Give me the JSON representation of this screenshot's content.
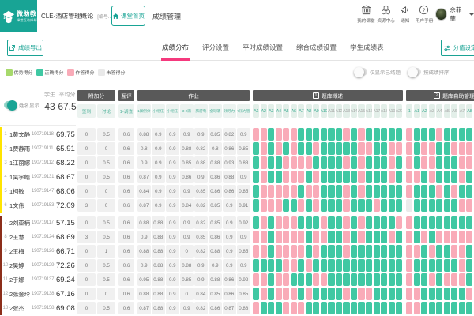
{
  "brand": {
    "name": "微助教",
    "tagline": "课堂互动好帮手",
    "color": "#18a495"
  },
  "topbar": {
    "course_title": "CLE-酒店管理概论",
    "course_code": "[编号...",
    "home_button": "课堂首页",
    "page_label": "成绩管理",
    "nav_items": [
      {
        "label": "我的课堂",
        "icon": "building-icon"
      },
      {
        "label": "资源中心",
        "icon": "resource-icon"
      },
      {
        "label": "通知",
        "icon": "megaphone-icon"
      },
      {
        "label": "用户手册",
        "icon": "question-icon"
      }
    ],
    "user": {
      "name": "余菲菲"
    }
  },
  "toolbar": {
    "export_button": "成绩导出",
    "tabs": [
      {
        "label": "成绩分布",
        "active": true
      },
      {
        "label": "评分设置",
        "active": false
      },
      {
        "label": "平时成绩设置",
        "active": false
      },
      {
        "label": "综合成绩设置",
        "active": false
      },
      {
        "label": "学生成绩表",
        "active": false
      }
    ],
    "score_button": "分值设定",
    "active_tab_color": "#f5397d"
  },
  "legend": {
    "items": [
      {
        "label": "优秀得分",
        "color": "#a7d96c"
      },
      {
        "label": "正确得分",
        "color": "#40c8a3"
      },
      {
        "label": "作答得分",
        "color": "#f9abb8"
      },
      {
        "label": "未答得分",
        "color": "#e9e9e9"
      }
    ]
  },
  "switches": [
    {
      "label": "仅显示已结题",
      "on": false
    },
    {
      "label": "按成绩排序",
      "on": false
    }
  ],
  "panel": {
    "name_toggle": {
      "label": "姓名显示",
      "on": true
    },
    "students_label": "学生",
    "students_value": "43",
    "average_label": "平均分",
    "average_value": "67.5",
    "group_colors": {
      "g1": "#ffe400",
      "g2": "#8c2e1a"
    }
  },
  "table": {
    "cell_colors": {
      "T": "#40c8a3",
      "P": "#f9abb8",
      "G": "#ebebeb"
    },
    "groups": [
      {
        "label": "附加分",
        "badge": "",
        "type": "numeric",
        "columns": [
          {
            "label": "签到",
            "active": true
          },
          {
            "label": "讨论",
            "active": true
          }
        ]
      },
      {
        "label": "互评",
        "badge": "",
        "type": "numeric",
        "columns": [
          {
            "label": "1-调查",
            "active": true
          }
        ]
      },
      {
        "label": "作业",
        "badge": "",
        "type": "numeric",
        "columns": [
          {
            "label": "1案例分",
            "active": true
          },
          {
            "label": "小组任",
            "active": true
          },
          {
            "label": "小组任",
            "active": true
          },
          {
            "label": "3-2酒",
            "active": true
          },
          {
            "label": "旅游电",
            "active": true
          },
          {
            "label": "全球酒",
            "active": true
          },
          {
            "label": "领导力",
            "active": true
          },
          {
            "label": "7压力管",
            "active": true
          }
        ]
      },
      {
        "label": "题库概述",
        "badge": "1",
        "type": "cells",
        "columns": [
          {
            "label": "A1",
            "active": true
          },
          {
            "label": "A2",
            "active": true
          },
          {
            "label": "A3",
            "active": true
          },
          {
            "label": "A4",
            "active": true
          },
          {
            "label": "A5",
            "active": true
          },
          {
            "label": "A6",
            "active": true
          },
          {
            "label": "A7",
            "active": true
          },
          {
            "label": "A8",
            "active": true
          },
          {
            "label": "A9",
            "active": true
          },
          {
            "label": "A10",
            "active": true
          },
          {
            "label": "A11",
            "active": false
          },
          {
            "label": "A12",
            "active": false
          },
          {
            "label": "A13",
            "active": false
          },
          {
            "label": "A14",
            "active": false
          },
          {
            "label": "A15",
            "active": false
          },
          {
            "label": "A16",
            "active": false
          },
          {
            "label": "A17",
            "active": false
          },
          {
            "label": "A18",
            "active": false
          },
          {
            "label": "A19",
            "active": false
          },
          {
            "label": "A20",
            "active": false
          }
        ]
      },
      {
        "label": "题库自助管理",
        "badge": "2",
        "type": "cells",
        "columns": [
          {
            "label": "1",
            "active": true
          },
          {
            "label": "A1",
            "active": true
          },
          {
            "label": "A2",
            "active": true
          },
          {
            "label": "A3",
            "active": false
          },
          {
            "label": "A4",
            "active": false
          },
          {
            "label": "A5",
            "active": false
          },
          {
            "label": "A6",
            "active": false
          },
          {
            "label": "A7",
            "active": false
          },
          {
            "label": "A8",
            "active": true
          }
        ]
      }
    ],
    "students": [
      {
        "row": "1",
        "group": "g1",
        "name": "1黄文静",
        "id": "190719118",
        "score": "69.75",
        "values": [
          "0",
          "0.5",
          "0.6",
          "0.88",
          "0.9",
          "0.9",
          "0.9",
          "0.9",
          "0.85",
          "0.82",
          "0.9"
        ],
        "bank1": "PPTPPPTTTTTTPTPTTTTT",
        "bank2": "PTTTPTTTT"
      },
      {
        "row": "2",
        "group": "g1",
        "name": "1贾静雨",
        "id": "190719111",
        "score": "65.91",
        "values": [
          "0",
          "0",
          "0.6",
          "0.8",
          "0.9",
          "0.9",
          "0.88",
          "0.82",
          "0.8",
          "0.86",
          "0.85"
        ],
        "bank1": "TPTPTPTTPTTTTTPPTTPP",
        "bank2": "PTPPTTPPP"
      },
      {
        "row": "3",
        "group": "g1",
        "name": "1江丽娜",
        "id": "190719112",
        "score": "68.22",
        "values": [
          "0",
          "0.5",
          "0.6",
          "0.9",
          "0.9",
          "0.9",
          "0.85",
          "0.88",
          "0.88",
          "0.93",
          "0.88"
        ],
        "bank1": "TPTTPPPPTTTTPTPTTTPT",
        "bank2": "PTPPTTTPP"
      },
      {
        "row": "4",
        "group": "g1",
        "name": "1吴宇皓",
        "id": "190719131",
        "score": "68.67",
        "values": [
          "0",
          "0.5",
          "0.6",
          "0.87",
          "0.9",
          "0.9",
          "0.86",
          "0.9",
          "0.86",
          "0.88",
          "0.9"
        ],
        "bank1": "TPTTPPPTPTTTTTPTTTPT",
        "bank2": "PPTPTTTPT"
      },
      {
        "row": "5",
        "group": "g1",
        "name": "1柯敏",
        "id": "190719147",
        "score": "68.06",
        "values": [
          "0",
          "0",
          "0.6",
          "0.84",
          "0.9",
          "0.9",
          "0.9",
          "0.85",
          "0.86",
          "0.86",
          "0.85"
        ],
        "bank1": "TPPPPPTPPTTTPTPTTTTT",
        "bank2": "PTTTPTPTT"
      },
      {
        "row": "6",
        "group": "g1",
        "name": "1文伟",
        "id": "190719153",
        "score": "72.09",
        "values": [
          "3",
          "0",
          "0.6",
          "0.87",
          "0.9",
          "0.9",
          "0.84",
          "0.82",
          "0.85",
          "0.9",
          "0.91"
        ],
        "bank1": "TPPPTTPTPTTTPTTTPTTT",
        "bank2": "GTTTTTTPP"
      },
      {
        "row": "7",
        "group": "g2",
        "name": "2刘亚楠",
        "id": "190719117",
        "score": "57.15",
        "values": [
          "0",
          "0.5",
          "0.6",
          "0.88",
          "0.88",
          "0.9",
          "0.9",
          "0.82",
          "0.85",
          "0.9",
          "0.92"
        ],
        "bank1": "TPTPPPTTTPTTPTPTTTTP",
        "bank2": "PTTTTTTTT"
      },
      {
        "row": "8",
        "group": "g2",
        "name": "2王慧",
        "id": "190719124",
        "score": "68.69",
        "values": [
          "3",
          "0.5",
          "0.6",
          "0.9",
          "0.88",
          "0.9",
          "0.9",
          "0.85",
          "0.86",
          "0.9",
          "0.9"
        ],
        "bank1": "PPTPPPPTPPTTPTPTTTPT",
        "bank2": "PTPTPPPPP"
      },
      {
        "row": "9",
        "group": "g2",
        "name": "2王梅",
        "id": "190719126",
        "score": "66.71",
        "values": [
          "0",
          "1",
          "0.6",
          "0.88",
          "0.88",
          "0.9",
          "0",
          "0.82",
          "0.88",
          "0.9",
          "0.85"
        ],
        "bank1": "PPTPPPPTPTTTPTTTTTTT",
        "bank2": "PPTPTTPPT"
      },
      {
        "row": "10",
        "group": "g2",
        "name": "2吴婷",
        "id": "190719129",
        "score": "72.26",
        "values": [
          "0",
          "0.5",
          "0.6",
          "0.9",
          "0.88",
          "0.9",
          "0.88",
          "0.9",
          "0.9",
          "0.9",
          "0.9"
        ],
        "bank1": "TTTTPPTPTTTTTTTTTTTT",
        "bank2": "PTTTTTTPT"
      },
      {
        "row": "11",
        "group": "g2",
        "name": "2于娜",
        "id": "190719137",
        "score": "69.24",
        "values": [
          "0",
          "0.5",
          "0.6",
          "0.95",
          "0.88",
          "0.9",
          "0.85",
          "0.9",
          "0.88",
          "0.86",
          "0.92"
        ],
        "bank1": "PPTPPTTTPPTTTTTTTTTT",
        "bank2": "PTTPTPPPT"
      },
      {
        "row": "12",
        "group": "g2",
        "name": "2张金玲",
        "id": "190719138",
        "score": "67.16",
        "values": [
          "0",
          "0",
          "0.6",
          "0.88",
          "0.88",
          "0.9",
          "0",
          "0.84",
          "0.85",
          "0.86",
          "0.85"
        ],
        "bank1": "TPTPPPTPTTTTPTPPTTTT",
        "bank2": "PPTTTTTTP"
      },
      {
        "row": "13",
        "group": "g2",
        "name": "2张杰",
        "id": "190719158",
        "score": "69.08",
        "values": [
          "0",
          "0.5",
          "0.6",
          "0.87",
          "0.88",
          "0.9",
          "0.9",
          "0.82",
          "0.86",
          "0.87",
          "0.88"
        ],
        "bank1": "PTTTPPPTTTTTTTTTTTTT",
        "bank2": "PPTTTTTTT"
      }
    ]
  }
}
